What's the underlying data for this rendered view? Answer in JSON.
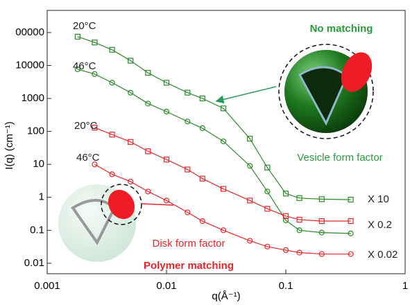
{
  "chart_data": {
    "type": "scatter",
    "xlabel": "q(Å⁻¹)",
    "ylabel": "I(q) (cm⁻¹)",
    "log_x": true,
    "log_y": true,
    "xlim": [
      0.001,
      1
    ],
    "xticks": [
      0.001,
      0.01,
      0.1,
      1
    ],
    "ylim": [
      0.0048,
      470000
    ],
    "yticks": [
      {
        "value": 100000,
        "label": "00000"
      },
      10000,
      1000,
      100,
      10,
      1,
      0.1,
      0.01
    ],
    "x": [
      0.0018,
      0.0025,
      0.0035,
      0.005,
      0.007,
      0.01,
      0.015,
      0.02,
      0.03,
      0.05,
      0.07,
      0.1,
      0.13,
      0.2,
      0.35
    ],
    "series": [
      {
        "color": "#2a8a2a",
        "marker": "square",
        "values": [
          75000,
          50000,
          30000,
          14000,
          6000,
          3000,
          1500,
          1000,
          500,
          60,
          8,
          1.3,
          0.95,
          0.88,
          0.85
        ]
      },
      {
        "color": "#2a8a2a",
        "marker": "circle",
        "values": [
          7700,
          5500,
          3000,
          1500,
          700,
          400,
          200,
          125,
          50,
          9,
          1.5,
          0.2,
          0.1,
          0.085,
          0.08
        ]
      },
      {
        "color": "#e8262a",
        "marker": "square",
        "values": [
          null,
          130,
          80,
          48,
          25,
          14,
          7,
          3.7,
          1.8,
          0.8,
          0.45,
          0.27,
          0.21,
          0.19,
          0.19
        ]
      },
      {
        "color": "#e8262a",
        "marker": "circle",
        "values": [
          null,
          10,
          5,
          3,
          1.5,
          0.8,
          0.35,
          0.19,
          0.1,
          0.048,
          0.032,
          0.025,
          0.021,
          0.019,
          0.019
        ]
      }
    ],
    "annotations": [
      "20°C",
      "46°C",
      "No matching",
      "Vesicle form factor",
      "20°C",
      "46°C",
      "Disk form factor",
      "Polymer matching",
      "X 10",
      "X 0.2",
      "X 0.02"
    ]
  }
}
